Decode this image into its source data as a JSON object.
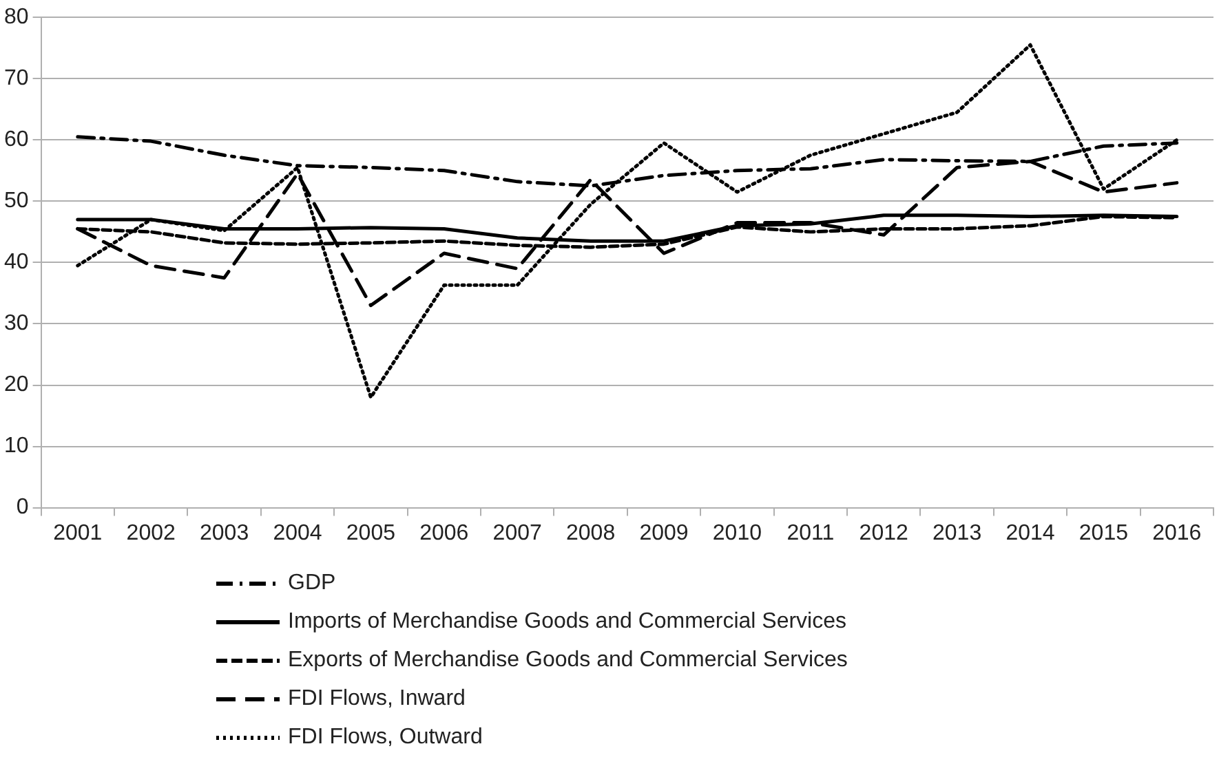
{
  "chart_data": {
    "type": "line",
    "categories": [
      "2001",
      "2002",
      "2003",
      "2004",
      "2005",
      "2006",
      "2007",
      "2008",
      "2009",
      "2010",
      "2011",
      "2012",
      "2013",
      "2014",
      "2015",
      "2016"
    ],
    "series": [
      {
        "name": "GDP",
        "color": "#000000",
        "line_style": "dashdot",
        "values": [
          60.5,
          59.8,
          57.5,
          55.8,
          55.5,
          55,
          53.2,
          52.5,
          54.2,
          55,
          55.3,
          56.8,
          56.6,
          56.5,
          59,
          59.5
        ]
      },
      {
        "name": "Imports of Merchandise Goods and Commercial Services",
        "color": "#000000",
        "line_style": "solid",
        "values": [
          47,
          47,
          45.5,
          45.5,
          45.7,
          45.5,
          44,
          43.5,
          43.5,
          46,
          46.3,
          47.7,
          47.7,
          47.5,
          47.7,
          47.5
        ]
      },
      {
        "name": "Exports of Merchandise Goods and Commercial Services",
        "color": "#000000",
        "line_style": "dashed",
        "values": [
          45.5,
          45,
          43.2,
          43,
          43.2,
          43.5,
          42.8,
          42.5,
          43,
          45.8,
          45,
          45.5,
          45.5,
          46,
          47.5,
          47.3
        ]
      },
      {
        "name": "FDI Flows, Inward",
        "color": "#000000",
        "line_style": "longdash",
        "values": [
          45.5,
          39.5,
          37.5,
          54.5,
          33,
          41.5,
          39,
          53.5,
          41.5,
          46.5,
          46.5,
          44.5,
          55.5,
          56.5,
          51.5,
          53
        ]
      },
      {
        "name": "FDI Flows, Outward",
        "color": "#000000",
        "line_style": "dotted",
        "values": [
          39.5,
          47,
          45.2,
          55.5,
          18,
          36.3,
          36.3,
          49.5,
          59.5,
          51.5,
          57.5,
          61,
          64.5,
          75.5,
          52,
          60
        ]
      }
    ],
    "ylim": [
      0,
      80
    ],
    "yticks": [
      0,
      10,
      20,
      30,
      40,
      50,
      60,
      70,
      80
    ],
    "grid": "y",
    "legend": "bottom",
    "marker": "none"
  }
}
